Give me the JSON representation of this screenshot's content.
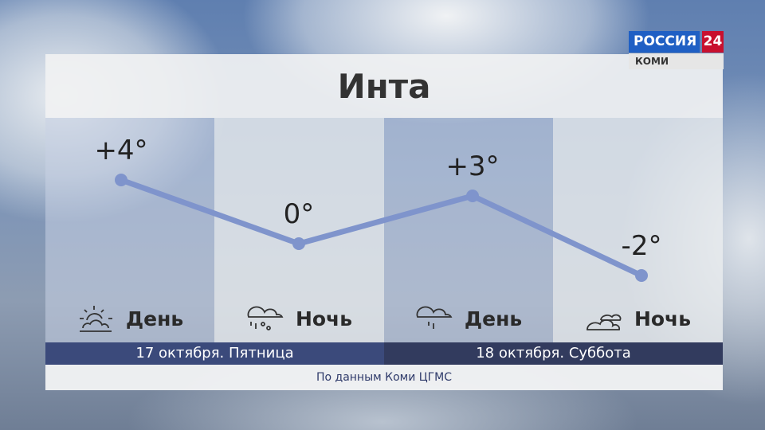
{
  "channel": {
    "logo": "РОССИЯ",
    "logo_number": "24",
    "region": "КОМИ",
    "brand_blue": "#1f5fc4",
    "brand_red": "#c8102e"
  },
  "title": "Инта",
  "periods": [
    {
      "label": "День",
      "icon": "sun-behind-cloud-icon",
      "temp": "+4°"
    },
    {
      "label": "Ночь",
      "icon": "cloud-rain-snow-icon",
      "temp": "0°"
    },
    {
      "label": "День",
      "icon": "cloud-rain-icon",
      "temp": "+3°"
    },
    {
      "label": "Ночь",
      "icon": "clouds-icon",
      "temp": "-2°"
    }
  ],
  "dates": [
    "17 октября. Пятница",
    "18 октября. Суббота"
  ],
  "footer": "По данным Коми ЦГМС",
  "chart_data": {
    "type": "line",
    "categories": [
      "17 День",
      "17 Ночь",
      "18 День",
      "18 Ночь"
    ],
    "values": [
      4,
      0,
      3,
      -2
    ],
    "line_color": "#7f94cc"
  }
}
